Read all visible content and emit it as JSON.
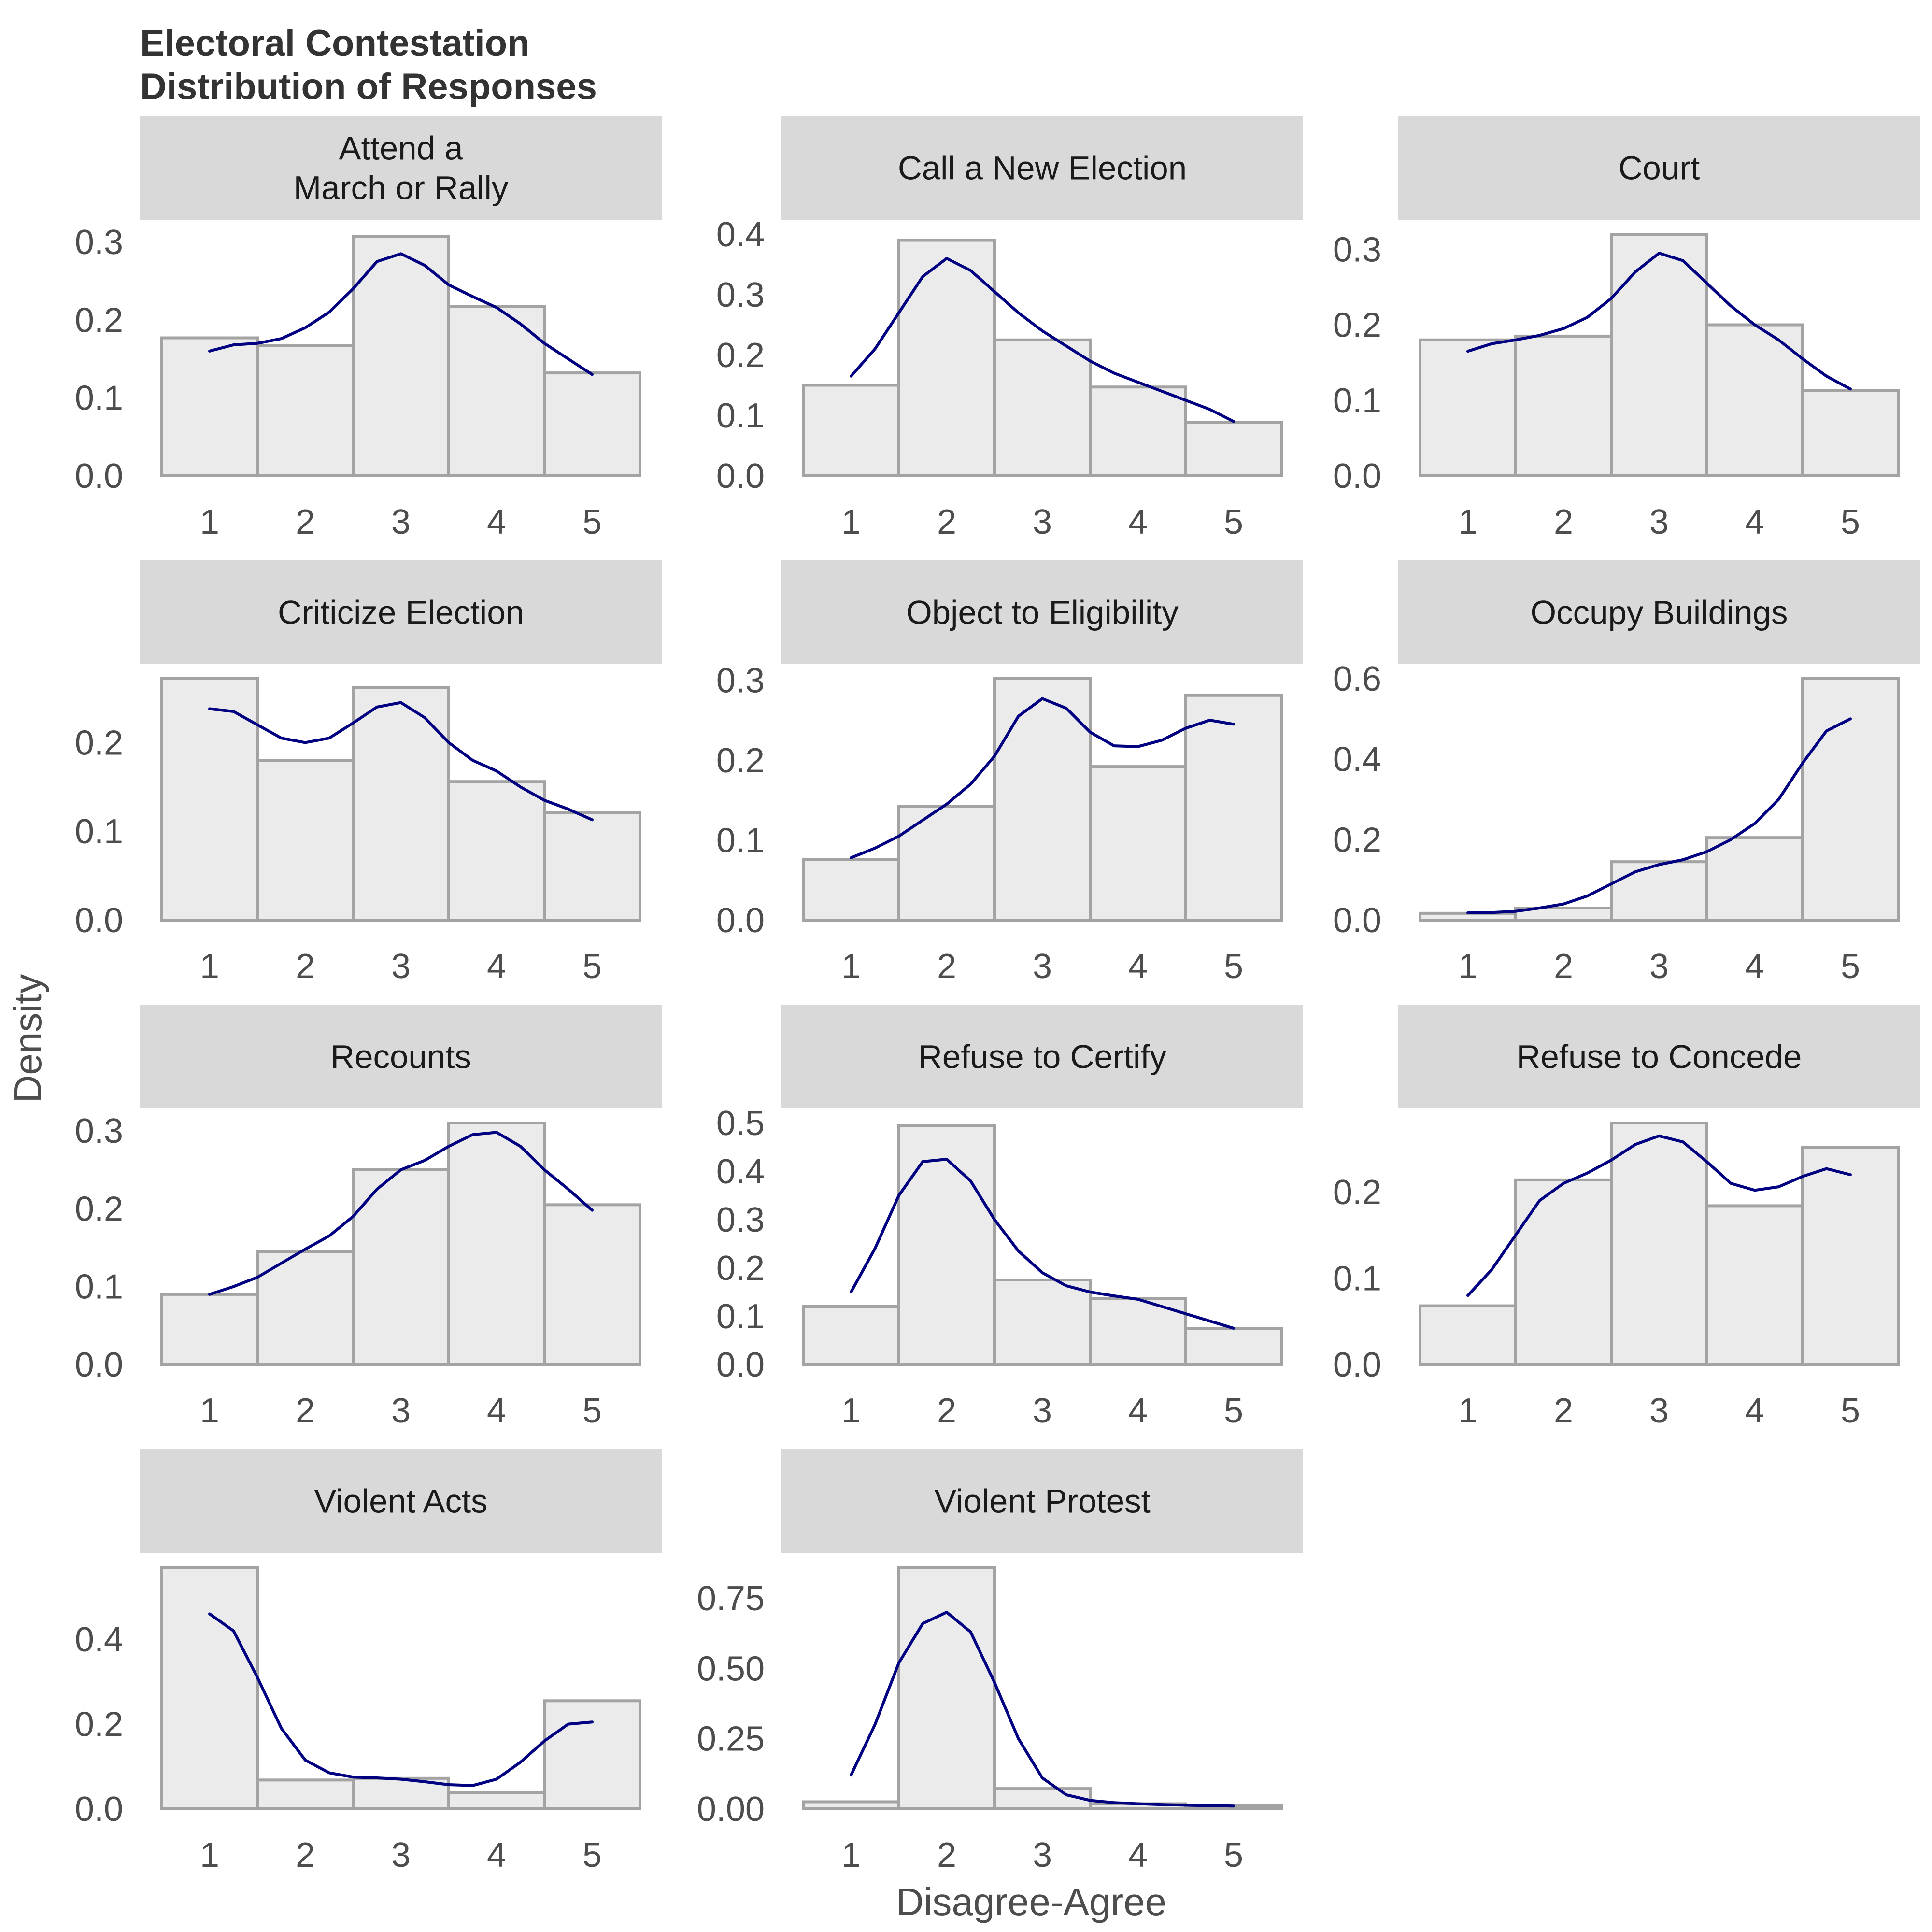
{
  "title_lines": [
    "Electoral Contestation",
    "Distribution of Responses"
  ],
  "xlabel": "Disagree-Agree",
  "ylabel": "Density",
  "colors": {
    "bar_fill": "#ebebeb",
    "bar_stroke": "#a3a3a3",
    "strip_fill": "#d9d9d9",
    "density_line": "#000080",
    "tick_text": "#4d4d4d"
  },
  "chart_data": {
    "type": "bar",
    "layout": "facet grid, 4 rows x 3 columns, free y scales",
    "categories": [
      1,
      2,
      3,
      4,
      5
    ],
    "x_tick_labels": [
      "1",
      "2",
      "3",
      "4",
      "5"
    ],
    "panels": [
      {
        "name": "Attend a\nMarch or Rally",
        "bars": [
          0.177,
          0.167,
          0.307,
          0.217,
          0.132
        ],
        "ylim": [
          0,
          0.31
        ],
        "yticks": [
          "0.0",
          "0.1",
          "0.2",
          "0.3"
        ],
        "density": {
          "x": [
            1.0,
            1.25,
            1.5,
            1.75,
            2.0,
            2.25,
            2.5,
            2.75,
            3.0,
            3.25,
            3.5,
            3.75,
            4.0,
            4.25,
            4.5,
            4.75,
            5.0
          ],
          "y": [
            0.16,
            0.168,
            0.17,
            0.176,
            0.19,
            0.21,
            0.24,
            0.275,
            0.285,
            0.27,
            0.245,
            0.23,
            0.216,
            0.195,
            0.17,
            0.15,
            0.13
          ]
        }
      },
      {
        "name": "Call a New Election",
        "bars": [
          0.15,
          0.39,
          0.225,
          0.147,
          0.088
        ],
        "ylim": [
          0,
          0.4
        ],
        "yticks": [
          "0.0",
          "0.1",
          "0.2",
          "0.3",
          "0.4"
        ],
        "density": {
          "x": [
            1.0,
            1.25,
            1.5,
            1.75,
            2.0,
            2.25,
            2.5,
            2.75,
            3.0,
            3.25,
            3.5,
            3.75,
            4.0,
            4.25,
            4.5,
            4.75,
            5.0
          ],
          "y": [
            0.165,
            0.21,
            0.27,
            0.33,
            0.36,
            0.34,
            0.305,
            0.27,
            0.24,
            0.215,
            0.19,
            0.17,
            0.155,
            0.14,
            0.125,
            0.11,
            0.09
          ]
        }
      },
      {
        "name": "Court",
        "bars": [
          0.18,
          0.185,
          0.32,
          0.2,
          0.113
        ],
        "ylim": [
          0,
          0.32
        ],
        "yticks": [
          "0.0",
          "0.1",
          "0.2",
          "0.3"
        ],
        "density": {
          "x": [
            1.0,
            1.25,
            1.5,
            1.75,
            2.0,
            2.25,
            2.5,
            2.75,
            3.0,
            3.25,
            3.5,
            3.75,
            4.0,
            4.25,
            4.5,
            4.75,
            5.0
          ],
          "y": [
            0.165,
            0.175,
            0.18,
            0.186,
            0.195,
            0.21,
            0.235,
            0.27,
            0.295,
            0.285,
            0.255,
            0.225,
            0.2,
            0.18,
            0.155,
            0.132,
            0.115
          ]
        }
      },
      {
        "name": "Criticize Election",
        "bars": [
          0.272,
          0.18,
          0.262,
          0.156,
          0.121
        ],
        "ylim": [
          0,
          0.272
        ],
        "yticks": [
          "0.0",
          "0.1",
          "0.2"
        ],
        "density": {
          "x": [
            1.0,
            1.25,
            1.5,
            1.75,
            2.0,
            2.25,
            2.5,
            2.75,
            3.0,
            3.25,
            3.5,
            3.75,
            4.0,
            4.25,
            4.5,
            4.75,
            5.0
          ],
          "y": [
            0.238,
            0.235,
            0.22,
            0.205,
            0.2,
            0.205,
            0.222,
            0.24,
            0.245,
            0.228,
            0.2,
            0.18,
            0.168,
            0.15,
            0.135,
            0.125,
            0.113
          ]
        }
      },
      {
        "name": "Object to Eligibility",
        "bars": [
          0.076,
          0.142,
          0.302,
          0.192,
          0.281
        ],
        "ylim": [
          0,
          0.302
        ],
        "yticks": [
          "0.0",
          "0.1",
          "0.2",
          "0.3"
        ],
        "density": {
          "x": [
            1.0,
            1.25,
            1.5,
            1.75,
            2.0,
            2.25,
            2.5,
            2.75,
            3.0,
            3.25,
            3.5,
            3.75,
            4.0,
            4.25,
            4.5,
            4.75,
            5.0
          ],
          "y": [
            0.078,
            0.09,
            0.105,
            0.125,
            0.145,
            0.17,
            0.205,
            0.255,
            0.277,
            0.265,
            0.235,
            0.218,
            0.217,
            0.225,
            0.24,
            0.25,
            0.245
          ]
        }
      },
      {
        "name": "Occupy Buildings",
        "bars": [
          0.017,
          0.03,
          0.145,
          0.205,
          0.6
        ],
        "ylim": [
          0,
          0.6
        ],
        "yticks": [
          "0.0",
          "0.2",
          "0.4",
          "0.6"
        ],
        "density": {
          "x": [
            1.0,
            1.25,
            1.5,
            1.75,
            2.0,
            2.25,
            2.5,
            2.75,
            3.0,
            3.25,
            3.5,
            3.75,
            4.0,
            4.25,
            4.5,
            4.75,
            5.0
          ],
          "y": [
            0.018,
            0.019,
            0.022,
            0.03,
            0.04,
            0.06,
            0.09,
            0.12,
            0.138,
            0.15,
            0.17,
            0.2,
            0.24,
            0.3,
            0.39,
            0.47,
            0.5
          ]
        }
      },
      {
        "name": "Recounts",
        "bars": [
          0.09,
          0.145,
          0.25,
          0.31,
          0.205
        ],
        "ylim": [
          0,
          0.31
        ],
        "yticks": [
          "0.0",
          "0.1",
          "0.2",
          "0.3"
        ],
        "density": {
          "x": [
            1.0,
            1.25,
            1.5,
            1.75,
            2.0,
            2.25,
            2.5,
            2.75,
            3.0,
            3.25,
            3.5,
            3.75,
            4.0,
            4.25,
            4.5,
            4.75,
            5.0
          ],
          "y": [
            0.09,
            0.1,
            0.112,
            0.13,
            0.148,
            0.165,
            0.19,
            0.225,
            0.25,
            0.262,
            0.28,
            0.295,
            0.298,
            0.28,
            0.25,
            0.225,
            0.198
          ]
        }
      },
      {
        "name": "Refuse to Certify",
        "bars": [
          0.12,
          0.495,
          0.175,
          0.137,
          0.075
        ],
        "ylim": [
          0,
          0.5
        ],
        "yticks": [
          "0.0",
          "0.1",
          "0.2",
          "0.3",
          "0.4",
          "0.5"
        ],
        "density": {
          "x": [
            1.0,
            1.25,
            1.5,
            1.75,
            2.0,
            2.25,
            2.5,
            2.75,
            3.0,
            3.25,
            3.5,
            3.75,
            4.0,
            4.25,
            4.5,
            4.75,
            5.0
          ],
          "y": [
            0.15,
            0.24,
            0.35,
            0.42,
            0.425,
            0.38,
            0.3,
            0.235,
            0.19,
            0.163,
            0.15,
            0.142,
            0.135,
            0.12,
            0.105,
            0.09,
            0.075
          ]
        }
      },
      {
        "name": "Refuse to Concede",
        "bars": [
          0.068,
          0.214,
          0.28,
          0.184,
          0.252
        ],
        "ylim": [
          0,
          0.28
        ],
        "yticks": [
          "0.0",
          "0.1",
          "0.2"
        ],
        "density": {
          "x": [
            1.0,
            1.25,
            1.5,
            1.75,
            2.0,
            2.25,
            2.5,
            2.75,
            3.0,
            3.25,
            3.5,
            3.75,
            4.0,
            4.25,
            4.5,
            4.75,
            5.0
          ],
          "y": [
            0.08,
            0.11,
            0.15,
            0.19,
            0.21,
            0.222,
            0.237,
            0.255,
            0.265,
            0.258,
            0.235,
            0.21,
            0.202,
            0.206,
            0.218,
            0.227,
            0.22
          ]
        }
      },
      {
        "name": "Violent Acts",
        "bars": [
          0.57,
          0.068,
          0.072,
          0.038,
          0.255
        ],
        "ylim": [
          0,
          0.57
        ],
        "yticks": [
          "0.0",
          "0.2",
          "0.4"
        ],
        "density": {
          "x": [
            1.0,
            1.25,
            1.5,
            1.75,
            2.0,
            2.25,
            2.5,
            2.75,
            3.0,
            3.25,
            3.5,
            3.75,
            4.0,
            4.25,
            4.5,
            4.75,
            5.0
          ],
          "y": [
            0.46,
            0.42,
            0.31,
            0.19,
            0.115,
            0.085,
            0.075,
            0.073,
            0.07,
            0.064,
            0.057,
            0.055,
            0.07,
            0.11,
            0.16,
            0.2,
            0.205
          ]
        }
      },
      {
        "name": "Violent Protest",
        "bars": [
          0.025,
          0.86,
          0.072,
          0.018,
          0.012
        ],
        "ylim": [
          0,
          0.86
        ],
        "yticks": [
          "0.00",
          "0.25",
          "0.50",
          "0.75"
        ],
        "density": {
          "x": [
            1.0,
            1.25,
            1.5,
            1.75,
            2.0,
            2.25,
            2.5,
            2.75,
            3.0,
            3.25,
            3.5,
            3.75,
            4.0,
            4.25,
            4.5,
            4.75,
            5.0
          ],
          "y": [
            0.12,
            0.3,
            0.52,
            0.66,
            0.7,
            0.63,
            0.45,
            0.25,
            0.11,
            0.05,
            0.03,
            0.022,
            0.018,
            0.015,
            0.013,
            0.011,
            0.01
          ]
        }
      }
    ]
  }
}
